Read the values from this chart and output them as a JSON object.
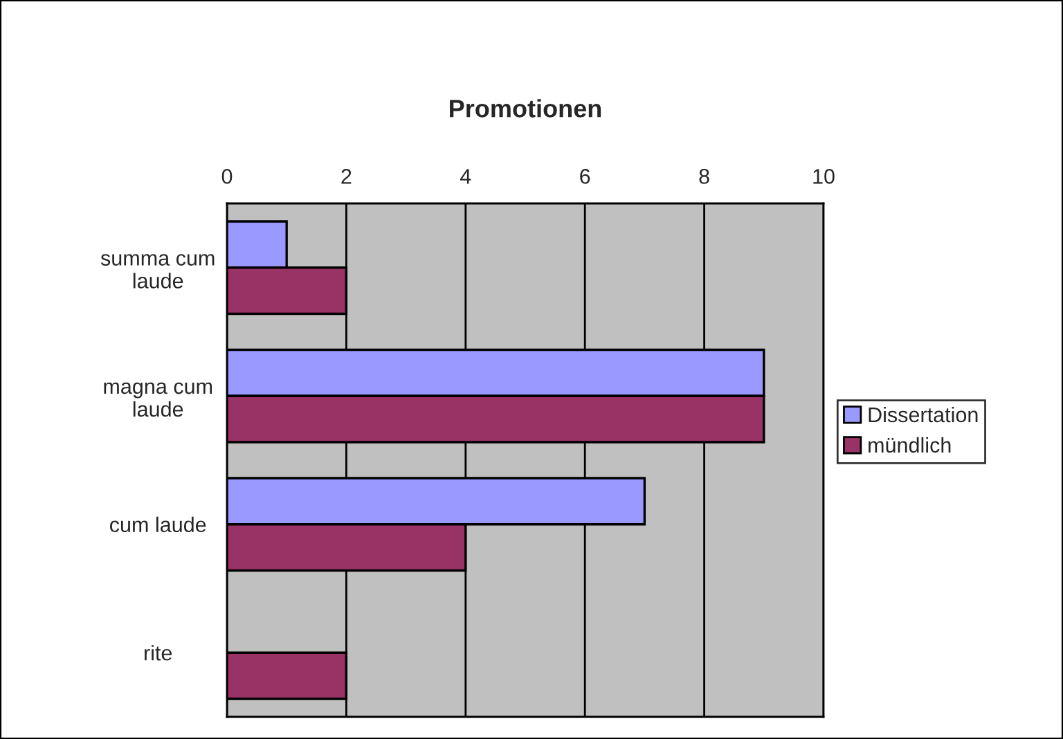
{
  "chart_data": {
    "type": "bar",
    "orientation": "horizontal",
    "title": "Promotionen",
    "categories": [
      "summa cum\nlaude",
      "magna cum\nlaude",
      "cum laude",
      "rite"
    ],
    "series": [
      {
        "name": "Dissertation",
        "color": "#9999ff",
        "values": [
          1,
          9,
          7,
          null
        ]
      },
      {
        "name": "mündlich",
        "color": "#993366",
        "values": [
          2,
          9,
          4,
          2
        ]
      }
    ],
    "xlim": [
      0,
      10
    ],
    "xticks": [
      0,
      2,
      4,
      6,
      8,
      10
    ],
    "grid": "x",
    "legend": "right"
  }
}
